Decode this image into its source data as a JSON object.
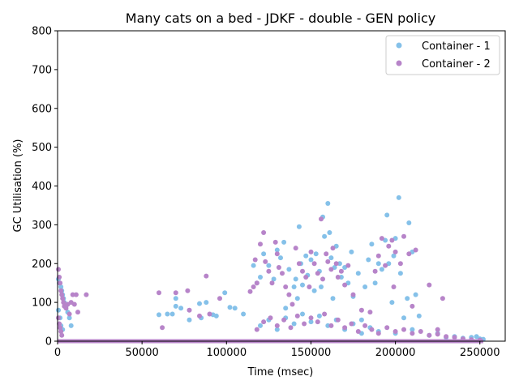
{
  "chart_data": {
    "type": "scatter",
    "title": "Many cats on a bed - JDKF - double -  GEN policy",
    "xlabel": "Time (msec)",
    "ylabel": "GC Utilisation (%)",
    "xlim": [
      0,
      265000
    ],
    "ylim": [
      0,
      800
    ],
    "xticks": [
      0,
      50000,
      100000,
      150000,
      200000,
      250000
    ],
    "yticks": [
      0,
      100,
      200,
      300,
      400,
      500,
      600,
      700,
      800
    ],
    "xtick_labels": [
      "0",
      "50000",
      "100000",
      "150000",
      "200000",
      "250000"
    ],
    "ytick_labels": [
      "0",
      "100",
      "200",
      "300",
      "400",
      "500",
      "600",
      "700",
      "800"
    ],
    "grid": false,
    "legend_position": "upper-right",
    "series": [
      {
        "name": "Container - 1",
        "color": "#85C1E9",
        "points": [
          [
            500,
            160
          ],
          [
            1000,
            150
          ],
          [
            2000,
            140
          ],
          [
            2500,
            130
          ],
          [
            3000,
            120
          ],
          [
            3500,
            110
          ],
          [
            4000,
            100
          ],
          [
            5000,
            90
          ],
          [
            6000,
            75
          ],
          [
            7000,
            60
          ],
          [
            8000,
            40
          ],
          [
            500,
            80
          ],
          [
            1500,
            60
          ],
          [
            2000,
            40
          ],
          [
            3000,
            30
          ],
          [
            60000,
            68
          ],
          [
            65000,
            70
          ],
          [
            68000,
            70
          ],
          [
            70000,
            90
          ],
          [
            70000,
            110
          ],
          [
            73000,
            85
          ],
          [
            78000,
            55
          ],
          [
            84000,
            97
          ],
          [
            85000,
            60
          ],
          [
            88000,
            100
          ],
          [
            92000,
            68
          ],
          [
            94000,
            65
          ],
          [
            99000,
            125
          ],
          [
            102000,
            87
          ],
          [
            105000,
            85
          ],
          [
            110000,
            70
          ],
          [
            116000,
            195
          ],
          [
            118000,
            150
          ],
          [
            120000,
            165
          ],
          [
            122000,
            225
          ],
          [
            125000,
            195
          ],
          [
            128000,
            160
          ],
          [
            130000,
            235
          ],
          [
            132000,
            215
          ],
          [
            134000,
            255
          ],
          [
            135000,
            85
          ],
          [
            137000,
            185
          ],
          [
            140000,
            140
          ],
          [
            141000,
            160
          ],
          [
            142000,
            110
          ],
          [
            143000,
            295
          ],
          [
            144000,
            200
          ],
          [
            145000,
            145
          ],
          [
            147000,
            220
          ],
          [
            148000,
            170
          ],
          [
            150000,
            210
          ],
          [
            152000,
            130
          ],
          [
            153000,
            225
          ],
          [
            155000,
            180
          ],
          [
            156000,
            140
          ],
          [
            157000,
            320
          ],
          [
            158000,
            270
          ],
          [
            160000,
            355
          ],
          [
            161000,
            280
          ],
          [
            162000,
            215
          ],
          [
            163000,
            110
          ],
          [
            164000,
            190
          ],
          [
            165000,
            245
          ],
          [
            167000,
            200
          ],
          [
            168000,
            165
          ],
          [
            170000,
            190
          ],
          [
            172000,
            150
          ],
          [
            174000,
            230
          ],
          [
            175000,
            115
          ],
          [
            178000,
            175
          ],
          [
            180000,
            55
          ],
          [
            182000,
            140
          ],
          [
            184000,
            210
          ],
          [
            186000,
            250
          ],
          [
            188000,
            150
          ],
          [
            190000,
            200
          ],
          [
            192000,
            185
          ],
          [
            194000,
            260
          ],
          [
            195000,
            325
          ],
          [
            196000,
            200
          ],
          [
            198000,
            100
          ],
          [
            199000,
            220
          ],
          [
            200000,
            265
          ],
          [
            202000,
            370
          ],
          [
            203000,
            175
          ],
          [
            205000,
            60
          ],
          [
            207000,
            110
          ],
          [
            208000,
            305
          ],
          [
            210000,
            230
          ],
          [
            212000,
            120
          ],
          [
            214000,
            65
          ],
          [
            120000,
            40
          ],
          [
            125000,
            55
          ],
          [
            130000,
            30
          ],
          [
            135000,
            60
          ],
          [
            140000,
            45
          ],
          [
            145000,
            70
          ],
          [
            150000,
            50
          ],
          [
            155000,
            65
          ],
          [
            160000,
            40
          ],
          [
            165000,
            55
          ],
          [
            170000,
            30
          ],
          [
            175000,
            45
          ],
          [
            180000,
            20
          ],
          [
            185000,
            35
          ],
          [
            190000,
            25
          ],
          [
            200000,
            20
          ],
          [
            210000,
            30
          ],
          [
            220000,
            15
          ],
          [
            225000,
            20
          ],
          [
            230000,
            10
          ],
          [
            235000,
            12
          ],
          [
            240000,
            8
          ],
          [
            245000,
            10
          ],
          [
            248000,
            12
          ],
          [
            250000,
            6
          ],
          [
            252000,
            5
          ]
        ]
      },
      {
        "name": "Container - 2",
        "color": "#B784C9",
        "points": [
          [
            500,
            185
          ],
          [
            1000,
            165
          ],
          [
            1500,
            150
          ],
          [
            2000,
            130
          ],
          [
            2500,
            120
          ],
          [
            3000,
            110
          ],
          [
            3500,
            100
          ],
          [
            4000,
            90
          ],
          [
            5000,
            85
          ],
          [
            6000,
            95
          ],
          [
            7000,
            70
          ],
          [
            8000,
            100
          ],
          [
            9000,
            120
          ],
          [
            10000,
            95
          ],
          [
            11000,
            120
          ],
          [
            12000,
            75
          ],
          [
            17000,
            120
          ],
          [
            500,
            60
          ],
          [
            1000,
            45
          ],
          [
            1500,
            35
          ],
          [
            2000,
            25
          ],
          [
            2500,
            15
          ],
          [
            60000,
            125
          ],
          [
            62000,
            35
          ],
          [
            70000,
            125
          ],
          [
            77000,
            130
          ],
          [
            78000,
            80
          ],
          [
            84000,
            65
          ],
          [
            88000,
            168
          ],
          [
            90000,
            70
          ],
          [
            96000,
            110
          ],
          [
            114000,
            128
          ],
          [
            116000,
            140
          ],
          [
            117000,
            210
          ],
          [
            118000,
            150
          ],
          [
            120000,
            250
          ],
          [
            122000,
            280
          ],
          [
            123000,
            205
          ],
          [
            125000,
            180
          ],
          [
            127000,
            150
          ],
          [
            129000,
            255
          ],
          [
            130000,
            225
          ],
          [
            131000,
            190
          ],
          [
            133000,
            175
          ],
          [
            135000,
            140
          ],
          [
            137000,
            120
          ],
          [
            139000,
            95
          ],
          [
            141000,
            240
          ],
          [
            143000,
            200
          ],
          [
            145000,
            180
          ],
          [
            147000,
            165
          ],
          [
            149000,
            140
          ],
          [
            150000,
            230
          ],
          [
            152000,
            200
          ],
          [
            154000,
            175
          ],
          [
            156000,
            315
          ],
          [
            157000,
            160
          ],
          [
            159000,
            225
          ],
          [
            160000,
            205
          ],
          [
            162000,
            185
          ],
          [
            163000,
            240
          ],
          [
            165000,
            200
          ],
          [
            166000,
            165
          ],
          [
            168000,
            180
          ],
          [
            170000,
            145
          ],
          [
            172000,
            195
          ],
          [
            175000,
            120
          ],
          [
            180000,
            80
          ],
          [
            185000,
            75
          ],
          [
            188000,
            180
          ],
          [
            190000,
            220
          ],
          [
            192000,
            265
          ],
          [
            194000,
            195
          ],
          [
            196000,
            245
          ],
          [
            198000,
            260
          ],
          [
            199000,
            140
          ],
          [
            200000,
            230
          ],
          [
            203000,
            200
          ],
          [
            205000,
            270
          ],
          [
            208000,
            225
          ],
          [
            210000,
            90
          ],
          [
            212000,
            235
          ],
          [
            220000,
            145
          ],
          [
            225000,
            30
          ],
          [
            228000,
            110
          ],
          [
            118000,
            30
          ],
          [
            122000,
            50
          ],
          [
            126000,
            60
          ],
          [
            130000,
            40
          ],
          [
            134000,
            55
          ],
          [
            138000,
            35
          ],
          [
            142000,
            65
          ],
          [
            146000,
            45
          ],
          [
            150000,
            60
          ],
          [
            154000,
            50
          ],
          [
            158000,
            70
          ],
          [
            162000,
            40
          ],
          [
            166000,
            55
          ],
          [
            170000,
            35
          ],
          [
            174000,
            45
          ],
          [
            178000,
            25
          ],
          [
            182000,
            40
          ],
          [
            186000,
            30
          ],
          [
            190000,
            20
          ],
          [
            195000,
            35
          ],
          [
            200000,
            25
          ],
          [
            205000,
            30
          ],
          [
            210000,
            20
          ],
          [
            215000,
            25
          ],
          [
            220000,
            15
          ],
          [
            225000,
            18
          ],
          [
            230000,
            12
          ],
          [
            235000,
            10
          ],
          [
            240000,
            6
          ],
          [
            245000,
            4
          ],
          [
            250000,
            3
          ]
        ]
      }
    ]
  }
}
